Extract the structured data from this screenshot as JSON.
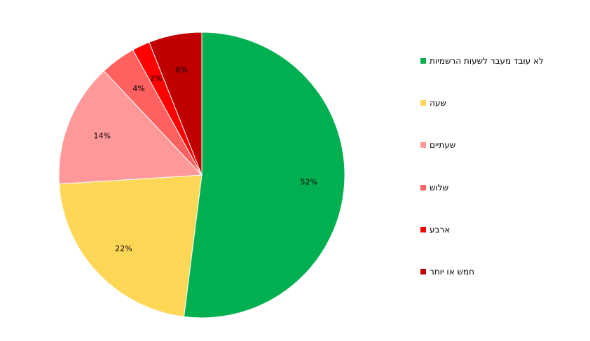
{
  "chart_data": {
    "type": "pie",
    "title": "",
    "legend_position": "right",
    "slices": [
      {
        "label": "לא עובד מעבר לשעות הרשמיות",
        "value": 52,
        "display": "52%",
        "color": "#00b050"
      },
      {
        "label": "שעה",
        "value": 22,
        "display": "22%",
        "color": "#ffd757"
      },
      {
        "label": "שעתיים",
        "value": 14,
        "display": "14%",
        "color": "#ff9999"
      },
      {
        "label": "שלוש",
        "value": 4,
        "display": "4%",
        "color": "#ff6161"
      },
      {
        "label": "ארבע",
        "value": 2,
        "display": "2%",
        "color": "#ff0000"
      },
      {
        "label": "חמש או יותר",
        "value": 6,
        "display": "6%",
        "color": "#c00000"
      }
    ]
  }
}
